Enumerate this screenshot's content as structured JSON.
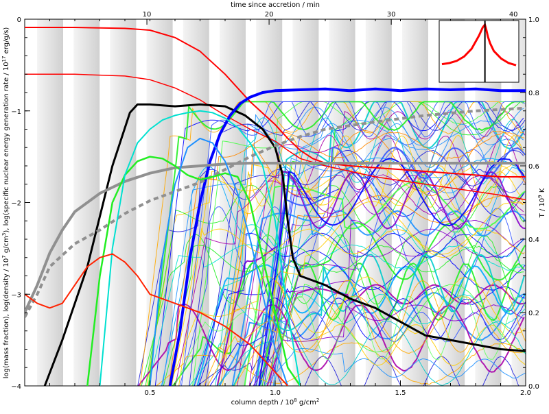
{
  "chart_data": {
    "type": "line",
    "xlabel_bottom": "column depth / 10",
    "xlabel_bottom_sup": "8",
    "xlabel_bottom_tail": " g/cm",
    "xlabel_bottom_sup2": "2",
    "xlabel_top": "time since accretion / min",
    "ylabel_left_pre": "log(mass fraction), log(density / 10",
    "ylabel_left_sup1": "7",
    "ylabel_left_mid": " g/cm",
    "ylabel_left_sup2": "3",
    "ylabel_left_mid2": "), log(specific nuclear energy generation rate / 10",
    "ylabel_left_sup3": "17",
    "ylabel_left_tail": " erg/g/s)",
    "ylabel_right_pre": "T / 10",
    "ylabel_right_sup": "9",
    "ylabel_right_tail": " K",
    "xlim": [
      0.0,
      2.0
    ],
    "ylim_left": [
      -4,
      0
    ],
    "ylim_right": [
      0.0,
      1.0
    ],
    "time_lim": [
      0,
      41
    ],
    "x_tick_labels": [
      "0.5",
      "1.0",
      "1.5",
      "2.0"
    ],
    "x_ticks": [
      0.5,
      1.0,
      1.5,
      2.0
    ],
    "top_tick_labels": [
      "10",
      "20",
      "30",
      "40"
    ],
    "top_ticks": [
      10,
      20,
      30,
      40
    ],
    "y_left_tick_labels": [
      "0",
      "−1",
      "−2",
      "−3",
      "−4"
    ],
    "y_left_ticks": [
      0,
      -1,
      -2,
      -3,
      -4
    ],
    "y_right_tick_labels": [
      "1.0",
      "0.8",
      "0.6",
      "0.4",
      "0.2",
      "0.0"
    ],
    "y_right_ticks": [
      1.0,
      0.8,
      0.6,
      0.4,
      0.2,
      0.0
    ],
    "series": [
      {
        "key": "red_top",
        "color": "#ff0000",
        "width": 2,
        "x": [
          0.0,
          0.2,
          0.4,
          0.5,
          0.6,
          0.7,
          0.8,
          0.9,
          1.0,
          1.05,
          1.1,
          1.15,
          1.2,
          1.3,
          1.4,
          1.5,
          1.6,
          1.7,
          1.8,
          1.9,
          2.0
        ],
        "y": [
          -0.09,
          -0.09,
          -0.1,
          -0.12,
          -0.2,
          -0.35,
          -0.6,
          -0.9,
          -1.15,
          -1.3,
          -1.43,
          -1.52,
          -1.57,
          -1.6,
          -1.62,
          -1.64,
          -1.66,
          -1.68,
          -1.7,
          -1.72,
          -1.72
        ]
      },
      {
        "key": "red_second",
        "color": "#ff0000",
        "width": 1.5,
        "x": [
          0.0,
          0.2,
          0.4,
          0.5,
          0.6,
          0.7,
          0.8,
          0.9,
          1.0,
          1.05,
          1.1,
          1.2,
          1.3,
          1.4,
          1.5,
          1.6,
          1.7,
          1.8,
          1.9,
          2.0
        ],
        "y": [
          -0.6,
          -0.6,
          -0.62,
          -0.66,
          -0.75,
          -0.88,
          -1.05,
          -1.2,
          -1.33,
          -1.43,
          -1.52,
          -1.6,
          -1.66,
          -1.72,
          -1.76,
          -1.8,
          -1.84,
          -1.88,
          -1.92,
          -1.97
        ]
      },
      {
        "key": "black_energy",
        "color": "#000000",
        "width": 3,
        "x": [
          0.08,
          0.15,
          0.25,
          0.35,
          0.42,
          0.45,
          0.5,
          0.6,
          0.7,
          0.8,
          0.88,
          0.95,
          1.0,
          1.03,
          1.05,
          1.07,
          1.1,
          1.2,
          1.3,
          1.4,
          1.5,
          1.6,
          1.7,
          1.8,
          1.9,
          2.0
        ],
        "y": [
          -4.0,
          -3.5,
          -2.7,
          -1.6,
          -1.02,
          -0.93,
          -0.93,
          -0.95,
          -0.93,
          -0.95,
          -1.05,
          -1.2,
          -1.4,
          -1.7,
          -2.2,
          -2.6,
          -2.8,
          -2.9,
          -3.05,
          -3.15,
          -3.3,
          -3.45,
          -3.5,
          -3.55,
          -3.6,
          -3.62
        ]
      },
      {
        "key": "blue_temperature",
        "color": "#0000ff",
        "width": 4,
        "x": [
          0.58,
          0.62,
          0.66,
          0.7,
          0.74,
          0.78,
          0.82,
          0.86,
          0.9,
          0.95,
          1.0,
          1.1,
          1.2,
          1.3,
          1.4,
          1.5,
          1.6,
          1.7,
          1.8,
          1.9,
          2.0
        ],
        "y": [
          -4.0,
          -3.4,
          -2.6,
          -2.0,
          -1.55,
          -1.25,
          -1.05,
          -0.92,
          -0.85,
          -0.8,
          -0.78,
          -0.77,
          -0.76,
          -0.78,
          -0.76,
          -0.78,
          -0.76,
          -0.77,
          -0.76,
          -0.78,
          -0.78
        ]
      },
      {
        "key": "grey_density",
        "color": "#909090",
        "width": 4,
        "x": [
          0.0,
          0.05,
          0.1,
          0.15,
          0.2,
          0.3,
          0.4,
          0.5,
          0.6,
          0.7,
          0.8,
          0.9,
          1.0,
          1.1,
          1.2,
          1.4,
          1.6,
          1.8,
          2.0
        ],
        "y": [
          -3.2,
          -2.9,
          -2.55,
          -2.3,
          -2.1,
          -1.9,
          -1.77,
          -1.68,
          -1.62,
          -1.6,
          -1.58,
          -1.57,
          -1.57,
          -1.57,
          -1.57,
          -1.57,
          -1.57,
          -1.57,
          -1.57
        ]
      },
      {
        "key": "grey_dashed",
        "color": "#909090",
        "width": 4,
        "dash": "7,5",
        "x": [
          0.0,
          0.05,
          0.1,
          0.2,
          0.3,
          0.4,
          0.5,
          0.6,
          0.7,
          0.8,
          0.9,
          1.0,
          1.1,
          1.2,
          1.4,
          1.6,
          1.8,
          2.0
        ],
        "y": [
          -3.25,
          -3.0,
          -2.7,
          -2.45,
          -2.3,
          -2.12,
          -1.98,
          -1.88,
          -1.78,
          -1.64,
          -1.5,
          -1.38,
          -1.28,
          -1.2,
          -1.12,
          -1.05,
          -1.0,
          -0.97
        ]
      },
      {
        "key": "green_a",
        "color": "#22ee22",
        "width": 2.5,
        "x": [
          0.25,
          0.3,
          0.35,
          0.4,
          0.45,
          0.5,
          0.55,
          0.6,
          0.65,
          0.7,
          0.75,
          0.8,
          0.85,
          0.9,
          0.95,
          1.0,
          1.05,
          1.1
        ],
        "y": [
          -4.0,
          -2.8,
          -2.0,
          -1.7,
          -1.55,
          -1.5,
          -1.52,
          -1.6,
          -1.7,
          -1.75,
          -1.72,
          -1.68,
          -1.72,
          -2.0,
          -2.6,
          -3.2,
          -3.8,
          -4.0
        ]
      },
      {
        "key": "cyan_a",
        "color": "#00e0d0",
        "width": 2,
        "x": [
          0.3,
          0.35,
          0.4,
          0.45,
          0.5,
          0.55,
          0.6,
          0.65,
          0.7,
          0.75,
          0.8,
          0.85,
          0.9,
          0.95,
          1.0,
          1.05,
          1.1
        ],
        "y": [
          -4.0,
          -2.5,
          -1.7,
          -1.35,
          -1.2,
          -1.1,
          -1.05,
          -1.02,
          -1.0,
          -1.02,
          -1.08,
          -1.18,
          -1.35,
          -1.6,
          -2.2,
          -3.2,
          -4.0
        ]
      },
      {
        "key": "mid_blue_a",
        "color": "#1e90ff",
        "width": 2,
        "x": [
          0.5,
          0.55,
          0.6,
          0.65,
          0.7,
          0.75,
          0.8,
          0.85,
          0.9,
          0.95,
          1.0,
          1.05
        ],
        "y": [
          -4.0,
          -2.6,
          -1.8,
          -1.4,
          -1.3,
          -1.35,
          -1.55,
          -1.9,
          -2.4,
          -3.0,
          -3.6,
          -4.0
        ]
      },
      {
        "key": "red_bump",
        "color": "#ff2200",
        "width": 2,
        "x": [
          0.0,
          0.05,
          0.1,
          0.15,
          0.2,
          0.25,
          0.3,
          0.35,
          0.4,
          0.45,
          0.5,
          0.6,
          0.7,
          0.8,
          0.9,
          1.0,
          1.05
        ],
        "y": [
          -3.0,
          -3.1,
          -3.15,
          -3.1,
          -2.9,
          -2.7,
          -2.6,
          -2.56,
          -2.65,
          -2.8,
          -3.0,
          -3.1,
          -3.2,
          -3.35,
          -3.55,
          -3.85,
          -4.0
        ]
      }
    ],
    "inset": {
      "color": "#ff0000",
      "marker_color": "#000000",
      "x": [
        0.0,
        0.1,
        0.2,
        0.3,
        0.4,
        0.5,
        0.55,
        0.58,
        0.6,
        0.62,
        0.65,
        0.7,
        0.8,
        0.9,
        1.0
      ],
      "y": [
        0.28,
        0.3,
        0.34,
        0.42,
        0.56,
        0.8,
        0.95,
        1.0,
        0.9,
        0.78,
        0.66,
        0.52,
        0.38,
        0.3,
        0.26
      ],
      "marker_x": 0.58
    }
  }
}
